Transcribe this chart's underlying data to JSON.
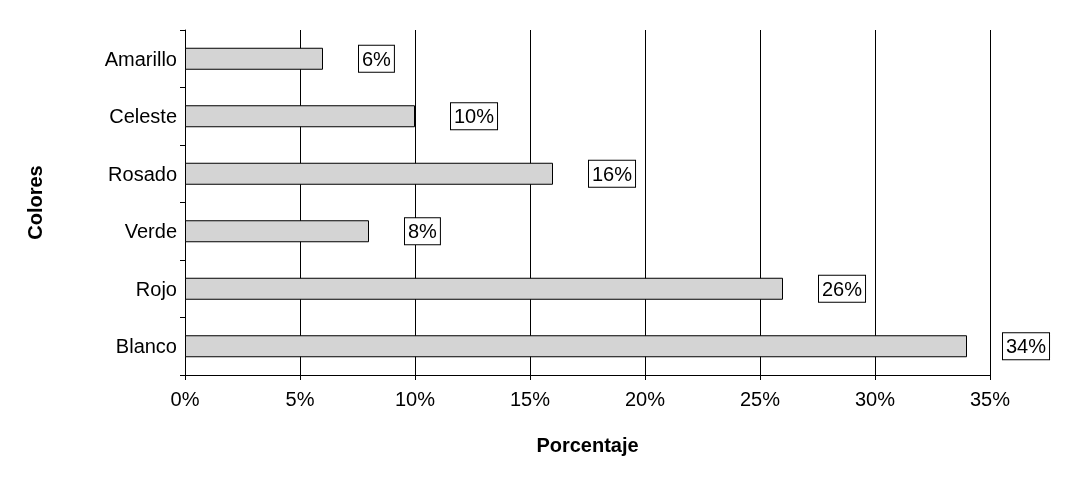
{
  "chart_data": {
    "type": "bar",
    "orientation": "horizontal",
    "xlabel": "Porcentaje",
    "ylabel": "Colores",
    "categories": [
      "Amarillo",
      "Celeste",
      "Rosado",
      "Verde",
      "Rojo",
      "Blanco"
    ],
    "values": [
      6,
      10,
      16,
      8,
      26,
      34
    ],
    "color": "#d4d4d4",
    "value_labels": [
      "6%",
      "10%",
      "16%",
      "8%",
      "26%",
      "34%"
    ],
    "xlim": [
      0,
      35
    ],
    "xticks": [
      {
        "value": 0,
        "label": "0%"
      },
      {
        "value": 5,
        "label": "5%"
      },
      {
        "value": 10,
        "label": "10%"
      },
      {
        "value": 15,
        "label": "15%"
      },
      {
        "value": 20,
        "label": "20%"
      },
      {
        "value": 25,
        "label": "25%"
      },
      {
        "value": 30,
        "label": "30%"
      },
      {
        "value": 35,
        "label": "35%"
      }
    ],
    "grid": "x"
  }
}
